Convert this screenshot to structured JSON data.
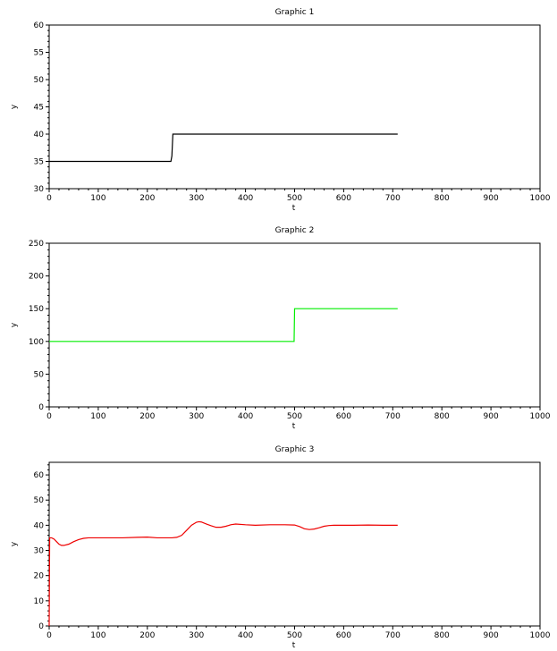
{
  "chart_data": [
    {
      "type": "line",
      "title": "Graphic 1",
      "xlabel": "t",
      "ylabel": "y",
      "xlim": [
        0,
        1000
      ],
      "ylim": [
        30,
        60
      ],
      "xticks": [
        0,
        100,
        200,
        300,
        400,
        500,
        600,
        700,
        800,
        900,
        1000
      ],
      "yticks": [
        30,
        35,
        40,
        45,
        50,
        55,
        60
      ],
      "grid": false,
      "series": [
        {
          "color": "#000000",
          "x": [
            0,
            248,
            250,
            252,
            710
          ],
          "y": [
            35,
            35,
            36,
            40,
            40
          ]
        }
      ]
    },
    {
      "type": "line",
      "title": "Graphic 2",
      "xlabel": "t",
      "ylabel": "y",
      "xlim": [
        0,
        1000
      ],
      "ylim": [
        0,
        250
      ],
      "xticks": [
        0,
        100,
        200,
        300,
        400,
        500,
        600,
        700,
        800,
        900,
        1000
      ],
      "yticks": [
        0,
        50,
        100,
        150,
        200,
        250
      ],
      "grid": false,
      "series": [
        {
          "color": "#00ee00",
          "x": [
            0,
            499,
            500,
            710
          ],
          "y": [
            100,
            100,
            150,
            150
          ]
        }
      ]
    },
    {
      "type": "line",
      "title": "Graphic 3",
      "xlabel": "t",
      "ylabel": "y",
      "xlim": [
        0,
        1000
      ],
      "ylim": [
        0,
        65
      ],
      "xticks": [
        0,
        100,
        200,
        300,
        400,
        500,
        600,
        700,
        800,
        900,
        1000
      ],
      "yticks": [
        0,
        10,
        20,
        30,
        40,
        50,
        60
      ],
      "grid": false,
      "series": [
        {
          "color": "#ee0000",
          "x": [
            0,
            1,
            2,
            5,
            10,
            15,
            20,
            25,
            30,
            40,
            50,
            60,
            70,
            80,
            90,
            100,
            120,
            150,
            180,
            200,
            220,
            250,
            260,
            270,
            280,
            290,
            300,
            305,
            310,
            320,
            330,
            340,
            350,
            360,
            370,
            380,
            400,
            420,
            450,
            480,
            500,
            510,
            520,
            530,
            540,
            550,
            560,
            570,
            580,
            600,
            620,
            650,
            680,
            710
          ],
          "y": [
            0,
            35,
            35,
            35,
            34.5,
            33.5,
            32.5,
            32,
            32,
            32.5,
            33.5,
            34.3,
            34.8,
            35,
            35,
            35,
            35,
            35,
            35.2,
            35.3,
            35,
            35,
            35.2,
            36,
            38,
            40,
            41.2,
            41.4,
            41.3,
            40.5,
            39.8,
            39.2,
            39.2,
            39.6,
            40.2,
            40.5,
            40.2,
            40,
            40.2,
            40.2,
            40.1,
            39.5,
            38.6,
            38.3,
            38.5,
            39,
            39.6,
            39.9,
            40,
            40,
            40,
            40.1,
            40,
            40
          ]
        }
      ]
    }
  ]
}
